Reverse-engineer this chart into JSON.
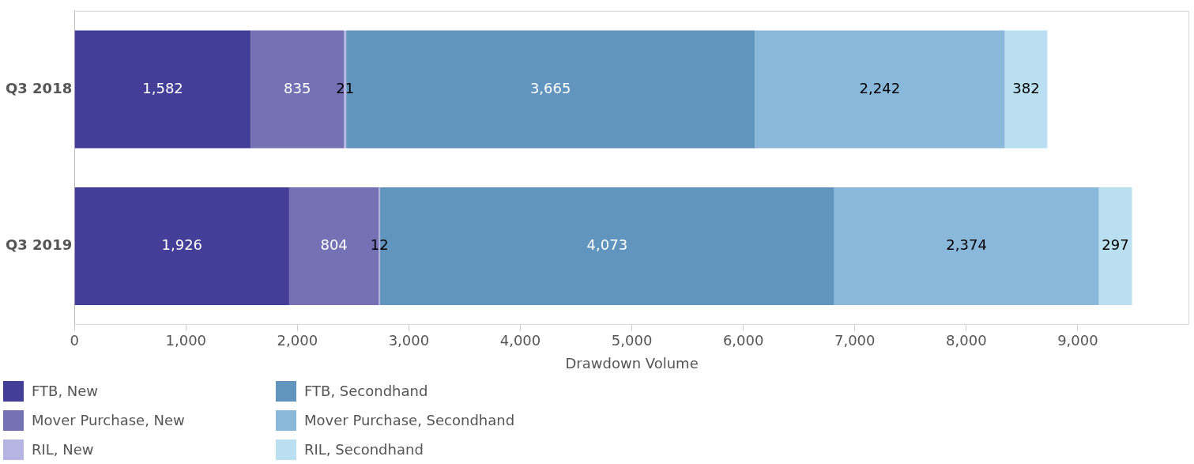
{
  "chart_data": {
    "type": "bar",
    "orientation": "horizontal",
    "stacked": true,
    "xlabel": "Drawdown Volume",
    "categories": [
      "Q3 2018",
      "Q3 2019"
    ],
    "series": [
      {
        "name": "FTB, New",
        "color": "#433e97",
        "values": [
          1582,
          1926
        ],
        "value_labels": [
          "1,582",
          "1,926"
        ]
      },
      {
        "name": "Mover Purchase, New",
        "color": "#7472b5",
        "values": [
          835,
          804
        ],
        "value_labels": [
          "835",
          "804"
        ]
      },
      {
        "name": "RIL, New",
        "color": "#b6b4e0",
        "values": [
          21,
          12
        ],
        "value_labels": [
          "21",
          "12"
        ]
      },
      {
        "name": "FTB, Secondhand",
        "color": "#6195bd",
        "values": [
          3665,
          4073
        ],
        "value_labels": [
          "3,665",
          "4,073"
        ]
      },
      {
        "name": "Mover Purchase, Secondhand",
        "color": "#8ab8db",
        "values": [
          2242,
          2374
        ],
        "value_labels": [
          "2,242",
          "2,374"
        ]
      },
      {
        "name": "RIL, Secondhand",
        "color": "#b9dff1",
        "values": [
          382,
          297
        ],
        "value_labels": [
          "382",
          "297"
        ]
      }
    ],
    "xlim": [
      0,
      10000
    ],
    "xticks": [
      0,
      {
        "value": 1000,
        "label": "1,000"
      },
      {
        "value": 2000,
        "label": "2,000"
      },
      {
        "value": 3000,
        "label": "3,000"
      },
      {
        "value": 4000,
        "label": "4,000"
      },
      {
        "value": 5000,
        "label": "5,000"
      },
      {
        "value": 6000,
        "label": "6,000"
      },
      {
        "value": 7000,
        "label": "7,000"
      },
      {
        "value": 8000,
        "label": "8,000"
      },
      {
        "value": 9000,
        "label": "9,000"
      }
    ],
    "grid": false,
    "legend": "bottom"
  }
}
